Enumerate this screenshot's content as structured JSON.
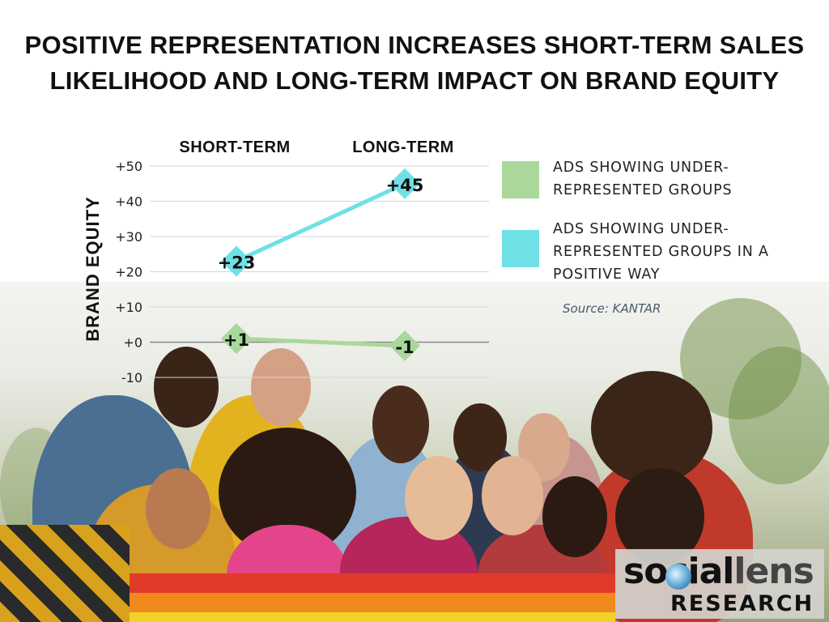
{
  "title_lines": [
    "POSITIVE REPRESENTATION INCREASES SHORT-TERM SALES",
    "LIKELIHOOD AND LONG-TERM IMPACT ON BRAND EQUITY"
  ],
  "source": "Source: KANTAR",
  "logo": {
    "word1": "social",
    "word2": "lens",
    "word3": "RESEARCH"
  },
  "chart_data": {
    "type": "line",
    "title": "",
    "ylabel": "BRAND EQUITY",
    "xlabel": "",
    "categories": [
      "SHORT-TERM",
      "LONG-TERM"
    ],
    "ylim": [
      -10,
      50
    ],
    "yticks": [
      50,
      40,
      30,
      20,
      10,
      0,
      -10
    ],
    "ytick_labels": [
      "+50",
      "+40",
      "+30",
      "+20",
      "+10",
      "+0",
      "-10"
    ],
    "grid": true,
    "legend_position": "right",
    "series": [
      {
        "name": "ADS SHOWING UNDER-REPRESENTED GROUPS",
        "legend_lines": [
          "ADS SHOWING UNDER-",
          "REPRESENTED GROUPS"
        ],
        "values": [
          1,
          -1
        ],
        "labels": [
          "+1",
          "-1"
        ],
        "color": "#a9d89a"
      },
      {
        "name": "ADS SHOWING UNDER-REPRESENTED GROUPS IN A POSITIVE WAY",
        "legend_lines": [
          "ADS SHOWING UNDER-",
          "REPRESENTED GROUPS IN A",
          "POSITIVE WAY"
        ],
        "values": [
          23,
          45
        ],
        "labels": [
          "+23",
          "+45"
        ],
        "color": "#6fe0e6"
      }
    ]
  }
}
